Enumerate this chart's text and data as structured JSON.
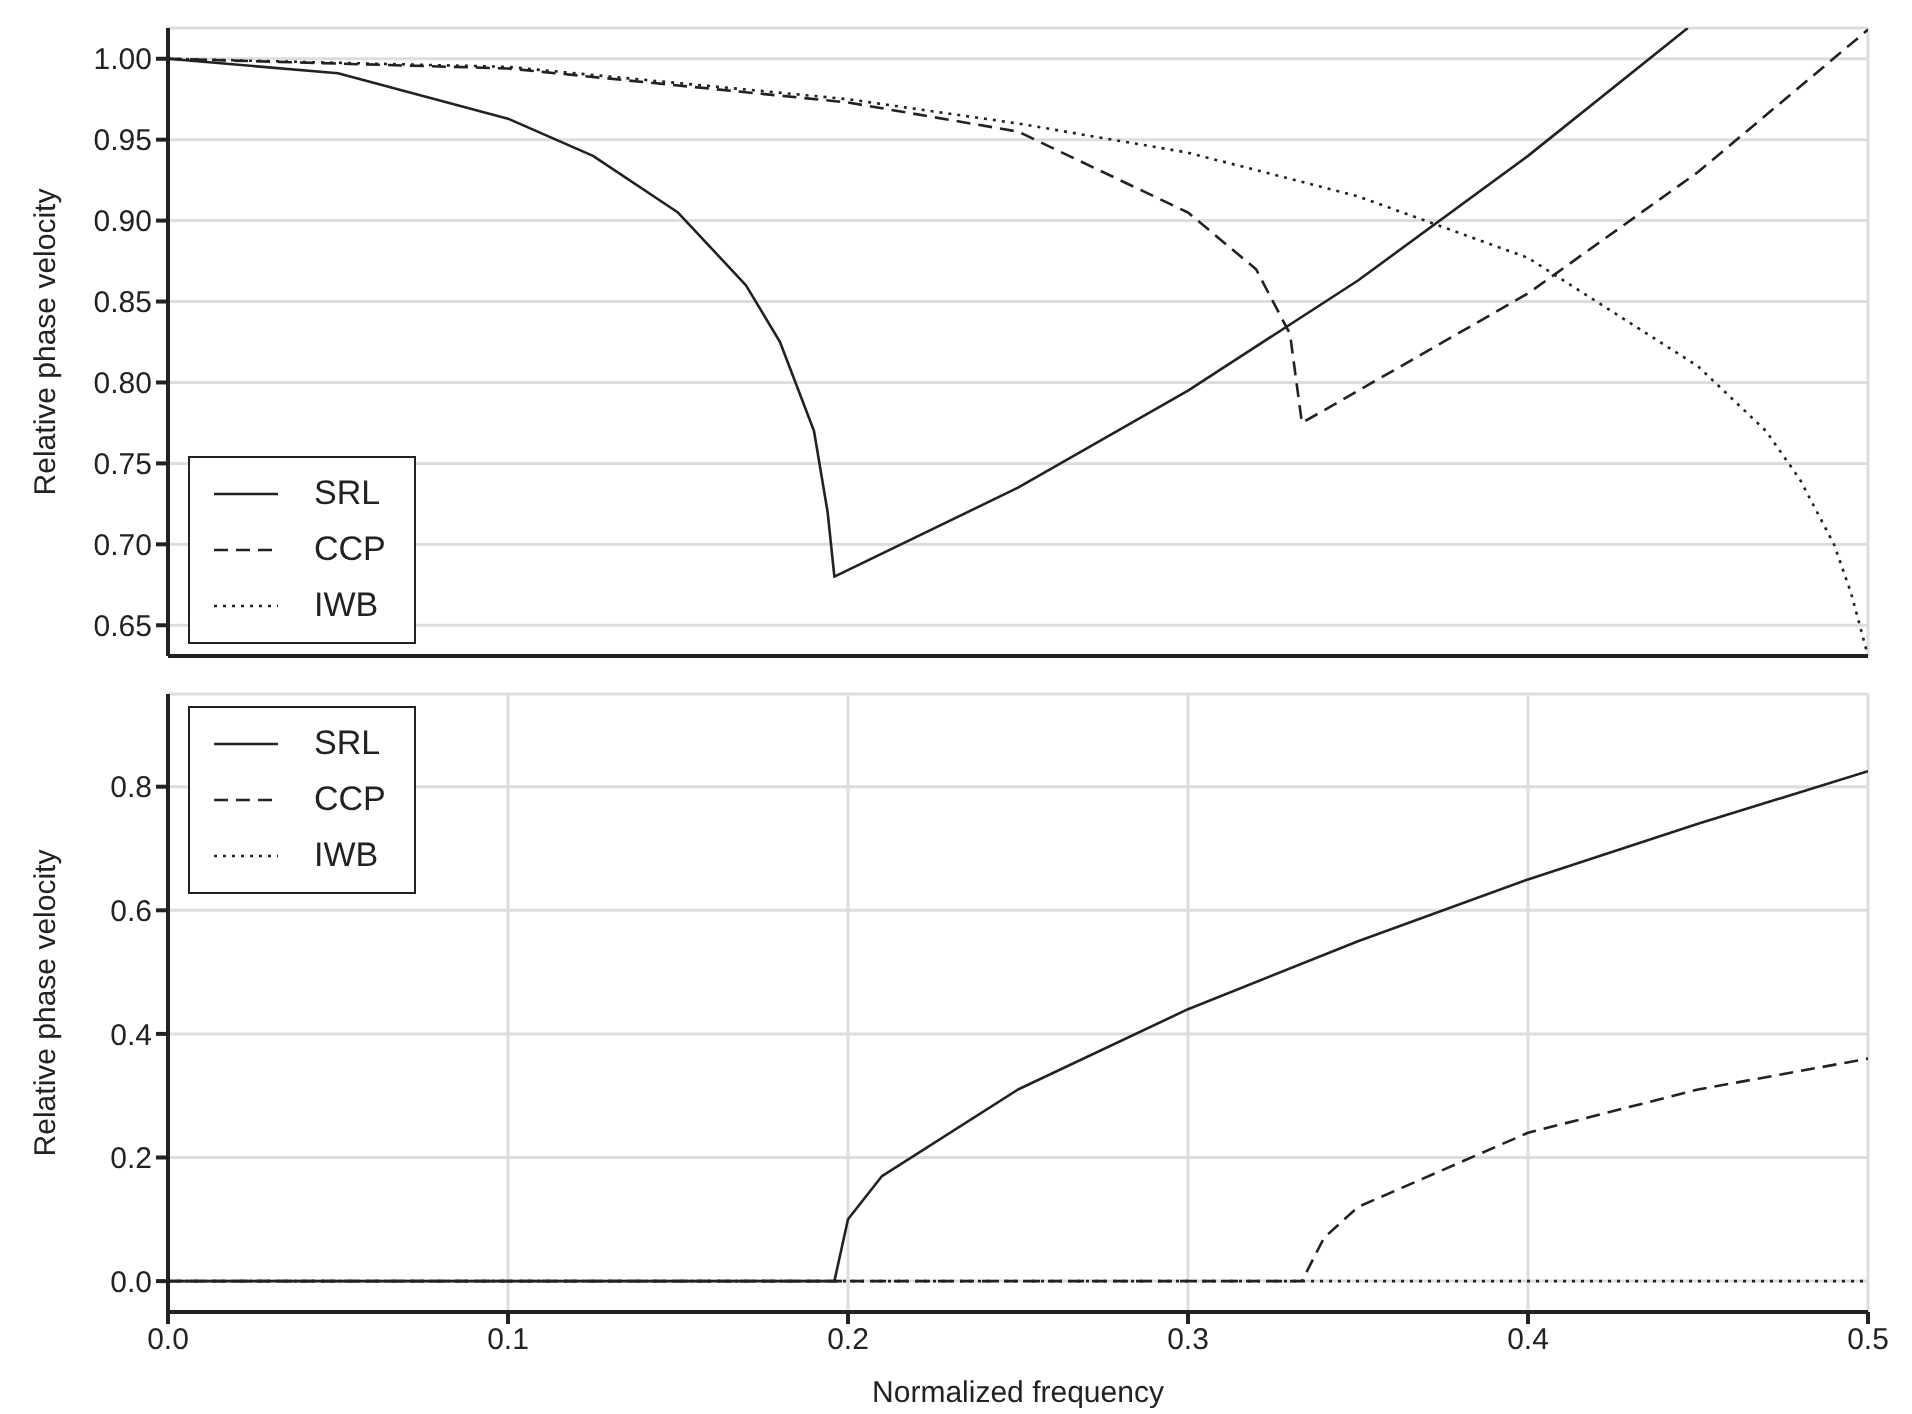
{
  "chart_data": [
    {
      "type": "line",
      "ylabel": "Relative phase velocity",
      "xlim": [
        0,
        0.5
      ],
      "xticks": [
        0,
        0.1,
        0.2,
        0.3,
        0.4,
        0.5
      ],
      "ylim": [
        0.631,
        1.019
      ],
      "yticks": [
        {
          "value": 0.65,
          "label": "0.65"
        },
        {
          "value": 0.7,
          "label": "0.70"
        },
        {
          "value": 0.75,
          "label": "0.75"
        },
        {
          "value": 0.8,
          "label": "0.80"
        },
        {
          "value": 0.85,
          "label": "0.85"
        },
        {
          "value": 0.9,
          "label": "0.90"
        },
        {
          "value": 0.95,
          "label": "0.95"
        },
        {
          "value": 1,
          "label": "1.00"
        }
      ],
      "tick_labels": "y",
      "grid": true,
      "legend": "bottom left",
      "marker": "none",
      "series": [
        {
          "name": "SRL",
          "color": "#222222",
          "line_style": "solid",
          "x": [
            0,
            0.05,
            0.1,
            0.125,
            0.15,
            0.17,
            0.18,
            0.19,
            0.194,
            0.196,
            0.196,
            0.25,
            0.3,
            0.35,
            0.4,
            0.447
          ],
          "values": [
            1.0,
            0.991,
            0.963,
            0.94,
            0.905,
            0.86,
            0.825,
            0.77,
            0.72,
            0.68,
            0.68,
            0.735,
            0.795,
            0.863,
            0.94,
            1.019
          ]
        },
        {
          "name": "CCP",
          "color": "#222222",
          "line_style": "dashed",
          "x": [
            0,
            0.1,
            0.2,
            0.25,
            0.3,
            0.32,
            0.33,
            0.3335,
            0.3335,
            0.4,
            0.45,
            0.5
          ],
          "values": [
            1.0,
            0.994,
            0.973,
            0.955,
            0.905,
            0.87,
            0.83,
            0.775,
            0.775,
            0.855,
            0.93,
            1.018
          ]
        },
        {
          "name": "IWB",
          "color": "#222222",
          "line_style": "dotted",
          "x": [
            0,
            0.1,
            0.2,
            0.25,
            0.3,
            0.35,
            0.4,
            0.45,
            0.47,
            0.48,
            0.49,
            0.495,
            0.5
          ],
          "values": [
            1.0,
            0.995,
            0.975,
            0.96,
            0.942,
            0.915,
            0.877,
            0.81,
            0.77,
            0.74,
            0.7,
            0.67,
            0.631
          ]
        }
      ]
    },
    {
      "type": "line",
      "xlabel": "Normalized frequency",
      "ylabel": "Relative phase velocity",
      "xlim": [
        0,
        0.5
      ],
      "xticks": [
        {
          "value": 0,
          "label": "0.0"
        },
        0.1,
        0.2,
        0.3,
        0.4,
        0.5
      ],
      "ylim": [
        -0.05,
        0.95
      ],
      "yticks": [
        {
          "value": 0,
          "label": "0.0"
        },
        0.2,
        0.4,
        0.6,
        0.8
      ],
      "grid": true,
      "legend": "top left",
      "marker": "none",
      "series": [
        {
          "name": "SRL",
          "color": "#222222",
          "line_style": "solid",
          "x": [
            0,
            0.196,
            0.2,
            0.21,
            0.25,
            0.3,
            0.35,
            0.4,
            0.45,
            0.5
          ],
          "values": [
            0,
            0,
            0.1,
            0.17,
            0.31,
            0.44,
            0.55,
            0.65,
            0.74,
            0.825
          ]
        },
        {
          "name": "CCP",
          "color": "#222222",
          "line_style": "dashed",
          "x": [
            0,
            0.3335,
            0.34,
            0.35,
            0.4,
            0.45,
            0.5
          ],
          "values": [
            0,
            0,
            0.07,
            0.12,
            0.24,
            0.31,
            0.36
          ]
        },
        {
          "name": "IWB",
          "color": "#222222",
          "line_style": "dotted",
          "x": [
            0,
            0.5
          ],
          "values": [
            0,
            0
          ]
        }
      ]
    }
  ]
}
